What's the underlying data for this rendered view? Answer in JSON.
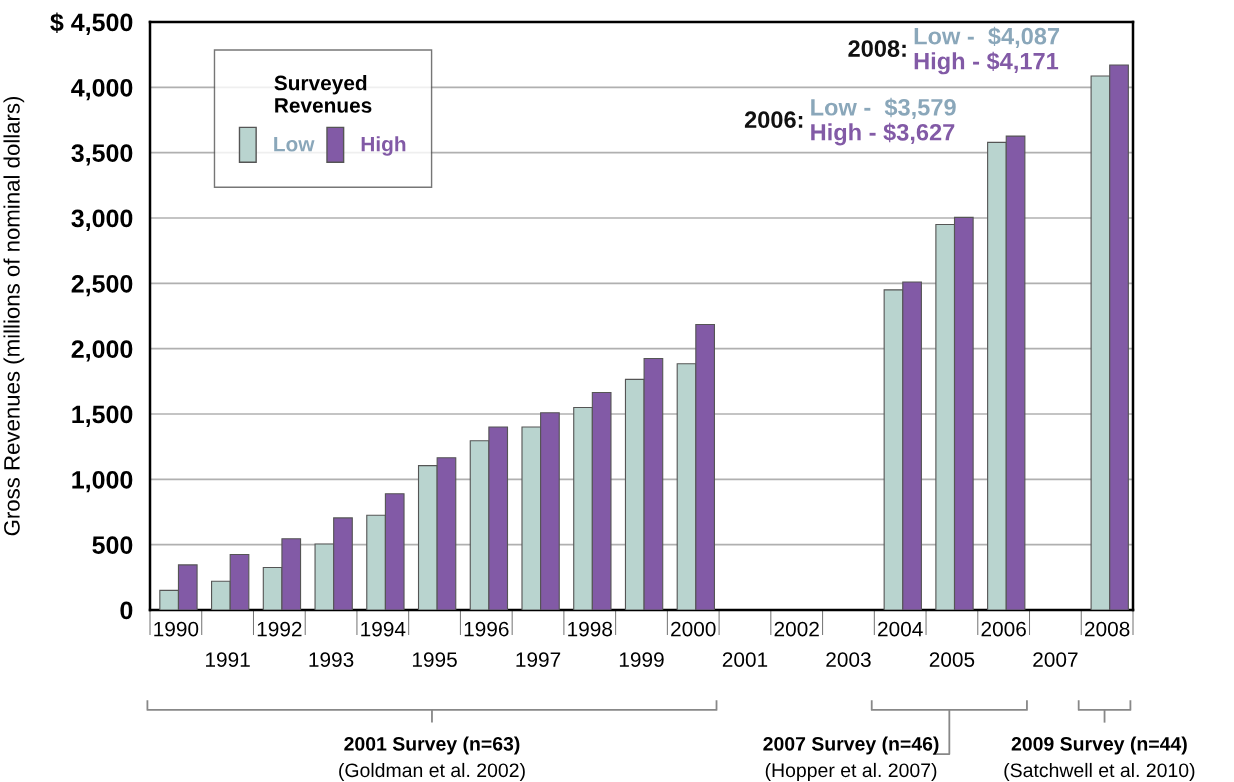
{
  "chart_data": {
    "type": "bar",
    "ylabel": "Gross Revenues (millions of nominal dollars)",
    "legend_title": "Surveyed\nRevenues",
    "categories": [
      "1990",
      "1991",
      "1992",
      "1993",
      "1994",
      "1995",
      "1996",
      "1997",
      "1998",
      "1999",
      "2000",
      "2001",
      "2002",
      "2003",
      "2004",
      "2005",
      "2006",
      "2007",
      "2008"
    ],
    "series": [
      {
        "name": "Low",
        "color": "#b9d4cf",
        "values": [
          150,
          220,
          325,
          505,
          725,
          1105,
          1295,
          1400,
          1550,
          1765,
          1885,
          null,
          null,
          null,
          2450,
          2950,
          3579,
          null,
          4087
        ]
      },
      {
        "name": "High",
        "color": "#825aa6",
        "values": [
          345,
          425,
          545,
          705,
          890,
          1165,
          1400,
          1510,
          1665,
          1925,
          2185,
          null,
          null,
          null,
          2510,
          3005,
          3627,
          null,
          4171
        ]
      }
    ],
    "ylim": [
      0,
      4500
    ],
    "yticks": [
      {
        "value": 0,
        "label": "0"
      },
      {
        "value": 500,
        "label": "500"
      },
      {
        "value": 1000,
        "label": "1,000"
      },
      {
        "value": 1500,
        "label": "1,500"
      },
      {
        "value": 2000,
        "label": "2,000"
      },
      {
        "value": 2500,
        "label": "2,500"
      },
      {
        "value": 3000,
        "label": "3,000"
      },
      {
        "value": 3500,
        "label": "3,500"
      },
      {
        "value": 4000,
        "label": "4,000"
      },
      {
        "value": 4500,
        "label": "$ 4,500"
      }
    ],
    "grid": "y",
    "legend": "top left",
    "annotations": [
      "2008:",
      {
        "text": "Low -  $4,087",
        "x": "2008",
        "y": 4087
      },
      {
        "text": "High - $4,171",
        "x": "2008",
        "y": 4171
      },
      "2006:",
      {
        "text": "Low -  $3,579",
        "x": "2006",
        "y": 3579
      },
      {
        "text": "High - $3,627",
        "x": "2006",
        "y": 3627
      },
      "2001 Survey (n=63)\n(Goldman et al. 2002)",
      "2007 Survey (n=46)\n(Hopper et al. 2007)",
      "2009 Survey (n=44)\n(Satchwell et al. 2010)"
    ]
  }
}
